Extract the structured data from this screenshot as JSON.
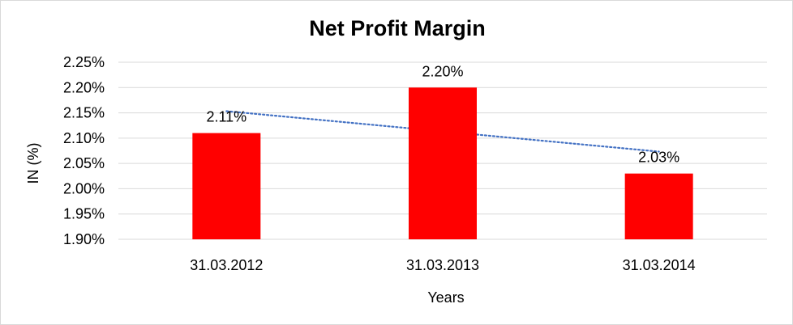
{
  "chart_data": {
    "type": "bar",
    "title": "Net Profit Margin",
    "xlabel": "Years",
    "ylabel": "IN (%)",
    "categories": [
      "31.03.2012",
      "31.03.2013",
      "31.03.2014"
    ],
    "values": [
      2.11,
      2.2,
      2.03
    ],
    "data_labels": [
      "2.11%",
      "2.20%",
      "2.03%"
    ],
    "ylim": [
      1.9,
      2.25
    ],
    "y_ticks": [
      1.9,
      1.95,
      2.0,
      2.05,
      2.1,
      2.15,
      2.2,
      2.25
    ],
    "y_tick_labels": [
      "1.90%",
      "1.95%",
      "2.00%",
      "2.05%",
      "2.10%",
      "2.15%",
      "2.20%",
      "2.25%"
    ],
    "grid": true,
    "legend": "none",
    "trendline": {
      "type": "linear",
      "style": "dotted",
      "color": "#4472c4"
    },
    "bar_color": "#ff0000",
    "grid_color": "#d9d9d9"
  }
}
